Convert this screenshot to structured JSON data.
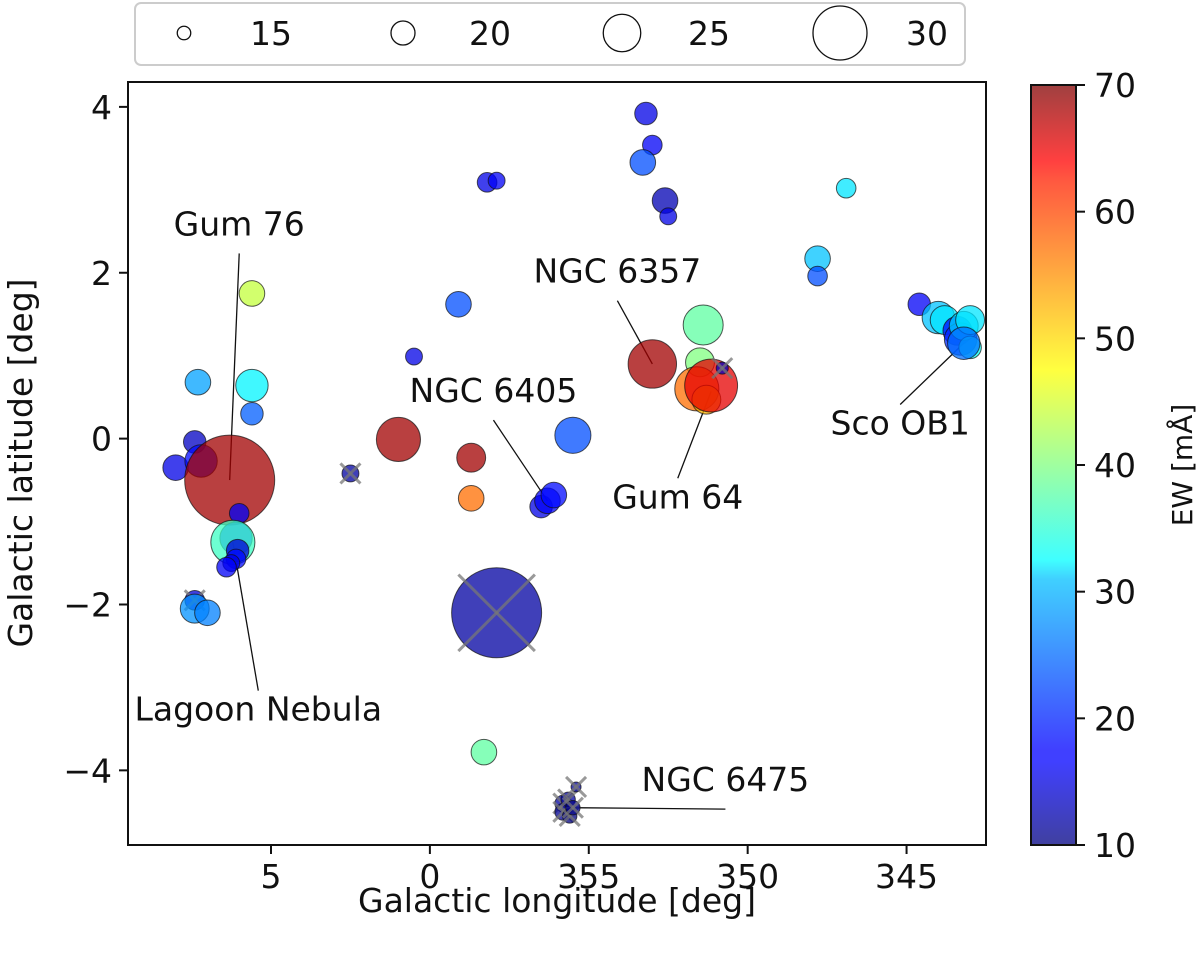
{
  "chart_data": {
    "type": "scatter",
    "xlabel": "Galactic longitude [deg]",
    "ylabel": "Galactic latitude [deg]",
    "xlim": [
      9.5,
      -17.5
    ],
    "ylim": [
      -4.9,
      4.3
    ],
    "x_axis_note": "longitude decreases to the right, wrapping from 0 to 360",
    "xticks": [
      {
        "value": 5,
        "label": "5"
      },
      {
        "value": 0,
        "label": "0"
      },
      {
        "value": -5,
        "label": "355"
      },
      {
        "value": -10,
        "label": "350"
      },
      {
        "value": -15,
        "label": "345"
      }
    ],
    "yticks": [
      {
        "value": 4,
        "label": "4"
      },
      {
        "value": 2,
        "label": "2"
      },
      {
        "value": 0,
        "label": "0"
      },
      {
        "value": -2,
        "label": "−2"
      },
      {
        "value": -4,
        "label": "−4"
      }
    ],
    "size_legend": {
      "title": "",
      "entries": [
        {
          "label": "15",
          "value": 15
        },
        {
          "label": "20",
          "value": 20
        },
        {
          "label": "25",
          "value": 25
        },
        {
          "label": "30",
          "value": 30
        }
      ]
    },
    "colorbar": {
      "label": "EW [mÅ]",
      "range": [
        10,
        70
      ],
      "ticks": [
        {
          "value": 70,
          "label": "70"
        },
        {
          "value": 60,
          "label": "60"
        },
        {
          "value": 50,
          "label": "50"
        },
        {
          "value": 40,
          "label": "40"
        },
        {
          "value": 30,
          "label": "30"
        },
        {
          "value": 20,
          "label": "20"
        },
        {
          "value": 10,
          "label": "10"
        }
      ],
      "colormap": "jet"
    },
    "points": [
      {
        "l": 8.0,
        "b": -0.35,
        "size": 16,
        "ew": 16
      },
      {
        "l": 7.4,
        "b": -0.04,
        "size": 15,
        "ew": 14
      },
      {
        "l": 7.3,
        "b": 0.68,
        "size": 16,
        "ew": 27
      },
      {
        "l": 7.2,
        "b": -0.27,
        "size": 18,
        "ew": 18
      },
      {
        "l": 6.3,
        "b": -0.5,
        "size": 30,
        "ew": 68
      },
      {
        "l": 5.6,
        "b": 1.75,
        "size": 16,
        "ew": 44
      },
      {
        "l": 5.6,
        "b": 0.64,
        "size": 18,
        "ew": 32
      },
      {
        "l": 5.6,
        "b": 0.3,
        "size": 15,
        "ew": 23
      },
      {
        "l": 2.5,
        "b": -0.42,
        "size": 13,
        "ew": 12,
        "crossed": true
      },
      {
        "l": 0.99,
        "b": -0.01,
        "size": 21,
        "ew": 68
      },
      {
        "l": 0.5,
        "b": 0.99,
        "size": 13,
        "ew": 16
      },
      {
        "l": -0.9,
        "b": 1.62,
        "size": 16,
        "ew": 22
      },
      {
        "l": -1.3,
        "b": -0.23,
        "size": 17,
        "ew": 68
      },
      {
        "l": -1.3,
        "b": -0.72,
        "size": 16,
        "ew": 56
      },
      {
        "l": -1.7,
        "b": -3.78,
        "size": 16,
        "ew": 38
      },
      {
        "l": -2.1,
        "b": -2.1,
        "size": 30,
        "ew": 12,
        "crossed": true
      },
      {
        "l": -1.8,
        "b": 3.09,
        "size": 14,
        "ew": 16
      },
      {
        "l": -2.1,
        "b": 3.11,
        "size": 13,
        "ew": 17
      },
      {
        "l": -3.5,
        "b": -0.82,
        "size": 15,
        "ew": 16
      },
      {
        "l": -3.7,
        "b": -0.75,
        "size": 16,
        "ew": 17
      },
      {
        "l": -3.9,
        "b": -0.68,
        "size": 16,
        "ew": 18
      },
      {
        "l": -4.5,
        "b": 0.04,
        "size": 19,
        "ew": 22
      },
      {
        "l": -4.2,
        "b": -4.4,
        "size": 13,
        "ew": 12,
        "crossed": true
      },
      {
        "l": -4.2,
        "b": -4.5,
        "size": 13,
        "ew": 11,
        "crossed": true
      },
      {
        "l": -4.35,
        "b": -4.35,
        "size": 12,
        "ew": 12,
        "crossed": true
      },
      {
        "l": -4.4,
        "b": -4.55,
        "size": 12,
        "ew": 10,
        "crossed": true
      },
      {
        "l": -4.5,
        "b": -4.45,
        "size": 12,
        "ew": 11,
        "crossed": true
      },
      {
        "l": -4.6,
        "b": -4.2,
        "size": 10,
        "ew": 12,
        "crossed": true
      },
      {
        "l": -6.8,
        "b": 3.92,
        "size": 15,
        "ew": 16
      },
      {
        "l": -7.0,
        "b": 3.54,
        "size": 14,
        "ew": 17
      },
      {
        "l": -6.7,
        "b": 3.33,
        "size": 16,
        "ew": 22
      },
      {
        "l": -7.4,
        "b": 2.87,
        "size": 16,
        "ew": 13
      },
      {
        "l": -7.5,
        "b": 2.68,
        "size": 13,
        "ew": 16
      },
      {
        "l": -7.0,
        "b": 0.9,
        "size": 22,
        "ew": 68
      },
      {
        "l": -8.6,
        "b": 1.37,
        "size": 20,
        "ew": 38
      },
      {
        "l": -8.5,
        "b": 0.92,
        "size": 17,
        "ew": 40
      },
      {
        "l": -8.4,
        "b": 0.6,
        "size": 21,
        "ew": 56
      },
      {
        "l": -8.7,
        "b": 0.47,
        "size": 17,
        "ew": 52
      },
      {
        "l": -8.85,
        "b": 0.64,
        "size": 23,
        "ew": 64
      },
      {
        "l": -9.2,
        "b": 0.85,
        "size": 11,
        "ew": 14,
        "crossed": true
      },
      {
        "l": -12.2,
        "b": 2.17,
        "size": 16,
        "ew": 29
      },
      {
        "l": -12.2,
        "b": 1.96,
        "size": 14,
        "ew": 22
      },
      {
        "l": -13.1,
        "b": 3.02,
        "size": 14,
        "ew": 31
      },
      {
        "l": -15.4,
        "b": 1.62,
        "size": 15,
        "ew": 17
      },
      {
        "l": -16.0,
        "b": 1.46,
        "size": 18,
        "ew": 29
      },
      {
        "l": -16.2,
        "b": 1.43,
        "size": 17,
        "ew": 31
      },
      {
        "l": -16.6,
        "b": 1.3,
        "size": 17,
        "ew": 18
      },
      {
        "l": -16.7,
        "b": 1.2,
        "size": 18,
        "ew": 20
      },
      {
        "l": -16.8,
        "b": 1.36,
        "size": 17,
        "ew": 30
      },
      {
        "l": -17.0,
        "b": 1.43,
        "size": 17,
        "ew": 31
      },
      {
        "l": -17.0,
        "b": 1.1,
        "size": 15,
        "ew": 33
      },
      {
        "l": -16.8,
        "b": 1.15,
        "size": 18,
        "ew": 24
      },
      {
        "l": 6.0,
        "b": -0.9,
        "size": 14,
        "ew": 17
      },
      {
        "l": 6.1,
        "b": -1.2,
        "size": 18,
        "ew": 20
      },
      {
        "l": 6.2,
        "b": -1.25,
        "size": 21,
        "ew": 36
      },
      {
        "l": 6.05,
        "b": -1.35,
        "size": 15,
        "ew": 15
      },
      {
        "l": 6.1,
        "b": -1.45,
        "size": 14,
        "ew": 18
      },
      {
        "l": 6.25,
        "b": -1.5,
        "size": 13,
        "ew": 16
      },
      {
        "l": 6.4,
        "b": -1.55,
        "size": 14,
        "ew": 17
      },
      {
        "l": 7.4,
        "b": -1.95,
        "size": 14,
        "ew": 15,
        "crossed": true
      },
      {
        "l": 7.4,
        "b": -2.05,
        "size": 17,
        "ew": 26
      },
      {
        "l": 7.0,
        "b": -2.1,
        "size": 16,
        "ew": 25
      }
    ],
    "annotations": [
      {
        "text": "Gum 76",
        "target_l": 6.3,
        "target_b": -0.5,
        "text_l": 6.0,
        "text_b": 2.45
      },
      {
        "text": "NGC 6357",
        "target_l": -7.0,
        "target_b": 0.9,
        "text_l": -5.9,
        "text_b": 1.88
      },
      {
        "text": "NGC 6405",
        "target_l": -3.7,
        "target_b": -0.75,
        "text_l": -2.0,
        "text_b": 0.44
      },
      {
        "text": "Gum 64",
        "target_l": -8.85,
        "target_b": 0.57,
        "text_l": -7.8,
        "text_b": -0.84
      },
      {
        "text": "Sco OB1",
        "target_l": -16.8,
        "target_b": 1.15,
        "text_l": -14.8,
        "text_b": 0.05
      },
      {
        "text": "Lagoon Nebula",
        "target_l": 6.2,
        "target_b": -1.25,
        "text_l": 5.4,
        "text_b": -3.4
      },
      {
        "text": "NGC 6475",
        "target_l": -4.4,
        "target_b": -4.45,
        "text_l": -9.3,
        "text_b": -4.25
      }
    ]
  }
}
